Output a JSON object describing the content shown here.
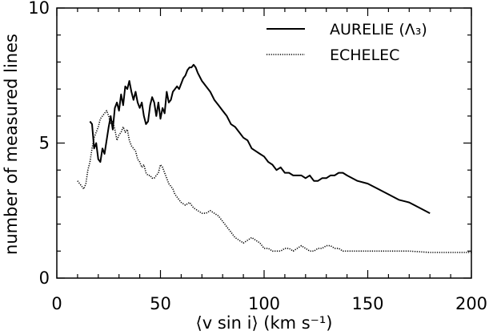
{
  "chart_data": {
    "type": "line",
    "xlabel": "⟨v sin i⟩ (km s⁻¹)",
    "ylabel": "number of measured lines",
    "xlim": [
      0,
      200
    ],
    "ylim": [
      0,
      10
    ],
    "x_ticks": [
      0,
      50,
      100,
      150,
      200
    ],
    "x_tick_labels": [
      "0",
      "50",
      "100",
      "150",
      "200"
    ],
    "y_ticks": [
      0,
      5,
      10
    ],
    "y_tick_labels": [
      "0",
      "5",
      "10"
    ],
    "grid": false,
    "legend_position": "top-right",
    "series": [
      {
        "name": "AURELIE (Λ₃)",
        "style": "solid",
        "color": "#000000",
        "x": [
          16,
          17,
          18,
          19,
          20,
          21,
          22,
          23,
          24,
          25,
          26,
          27,
          28,
          29,
          30,
          31,
          32,
          33,
          34,
          35,
          36,
          37,
          38,
          39,
          40,
          41,
          42,
          43,
          44,
          45,
          46,
          47,
          48,
          49,
          50,
          51,
          52,
          53,
          54,
          55,
          56,
          57,
          58,
          59,
          60,
          61,
          62,
          63,
          64,
          65,
          66,
          67,
          68,
          70,
          72,
          74,
          76,
          78,
          80,
          82,
          84,
          86,
          88,
          90,
          92,
          94,
          96,
          98,
          100,
          102,
          104,
          106,
          108,
          110,
          112,
          114,
          116,
          118,
          120,
          122,
          124,
          126,
          128,
          130,
          132,
          134,
          136,
          138,
          140,
          145,
          150,
          155,
          160,
          165,
          170,
          175,
          180
        ],
        "y": [
          5.8,
          5.7,
          4.8,
          5.0,
          4.4,
          4.3,
          4.8,
          4.6,
          5.1,
          5.6,
          6.0,
          5.5,
          6.3,
          6.5,
          6.2,
          6.8,
          6.4,
          7.1,
          7.0,
          7.3,
          6.9,
          6.6,
          6.9,
          6.5,
          6.3,
          6.5,
          6.0,
          5.7,
          5.8,
          6.4,
          6.7,
          6.5,
          6.0,
          6.5,
          5.9,
          6.3,
          6.1,
          6.9,
          6.5,
          6.6,
          6.9,
          7.0,
          7.1,
          7.0,
          7.2,
          7.4,
          7.5,
          7.7,
          7.8,
          7.8,
          7.9,
          7.8,
          7.6,
          7.3,
          7.1,
          6.9,
          6.6,
          6.4,
          6.2,
          6.0,
          5.7,
          5.6,
          5.4,
          5.2,
          5.1,
          4.8,
          4.7,
          4.6,
          4.5,
          4.3,
          4.2,
          4.0,
          4.1,
          3.9,
          3.9,
          3.8,
          3.8,
          3.8,
          3.7,
          3.8,
          3.6,
          3.6,
          3.7,
          3.7,
          3.8,
          3.8,
          3.9,
          3.9,
          3.8,
          3.6,
          3.5,
          3.3,
          3.1,
          2.9,
          2.8,
          2.6,
          2.4
        ]
      },
      {
        "name": "ECHELEC",
        "style": "dotted",
        "color": "#000000",
        "x": [
          10,
          11,
          12,
          13,
          14,
          15,
          16,
          17,
          18,
          19,
          20,
          21,
          22,
          23,
          24,
          25,
          26,
          27,
          28,
          29,
          30,
          31,
          32,
          33,
          34,
          35,
          36,
          37,
          38,
          39,
          40,
          41,
          42,
          43,
          44,
          45,
          46,
          47,
          48,
          49,
          50,
          51,
          52,
          53,
          54,
          55,
          56,
          57,
          58,
          59,
          60,
          62,
          64,
          66,
          68,
          70,
          72,
          74,
          76,
          78,
          80,
          82,
          84,
          86,
          88,
          90,
          92,
          94,
          96,
          98,
          100,
          102,
          104,
          106,
          108,
          110,
          112,
          114,
          116,
          118,
          120,
          122,
          124,
          126,
          128,
          130,
          132,
          134,
          136,
          138,
          140,
          150,
          160,
          170,
          180,
          190,
          200
        ],
        "y": [
          3.6,
          3.5,
          3.4,
          3.3,
          3.5,
          4.0,
          4.3,
          4.8,
          5.2,
          5.4,
          5.6,
          5.9,
          6.0,
          6.1,
          6.2,
          6.0,
          5.7,
          5.8,
          5.5,
          5.1,
          5.3,
          5.4,
          5.6,
          5.4,
          5.5,
          5.1,
          4.9,
          4.8,
          4.7,
          4.4,
          4.3,
          4.1,
          4.2,
          3.9,
          3.8,
          3.8,
          3.7,
          3.7,
          3.8,
          3.9,
          4.2,
          4.1,
          3.9,
          3.7,
          3.5,
          3.4,
          3.3,
          3.1,
          3.0,
          2.9,
          2.8,
          2.7,
          2.8,
          2.6,
          2.5,
          2.4,
          2.4,
          2.5,
          2.4,
          2.3,
          2.1,
          1.9,
          1.7,
          1.5,
          1.4,
          1.3,
          1.4,
          1.5,
          1.4,
          1.3,
          1.1,
          1.1,
          1.0,
          1.0,
          1.0,
          1.1,
          1.1,
          1.0,
          1.1,
          1.2,
          1.1,
          1.0,
          1.0,
          1.1,
          1.1,
          1.2,
          1.2,
          1.1,
          1.1,
          1.0,
          1.0,
          1.0,
          1.0,
          1.0,
          0.95,
          0.95,
          0.95
        ]
      }
    ]
  }
}
